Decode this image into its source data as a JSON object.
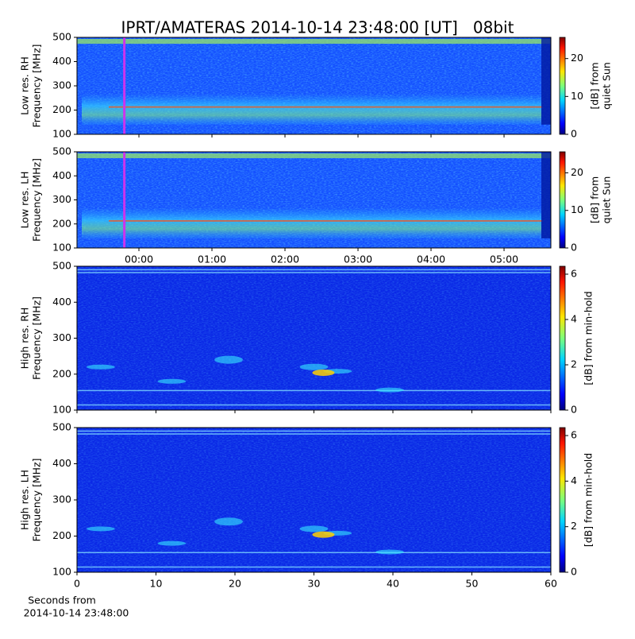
{
  "title": "IPRT/AMATERAS 2014-10-14 23:48:00 [UT]   08bit",
  "chart_data": [
    {
      "type": "heatmap",
      "ylabel": [
        "Low res. RH",
        "Frequency [MHz]"
      ],
      "xlim": [
        -0.848,
        5.641
      ],
      "xticks": [
        0,
        1,
        2,
        3,
        4,
        5
      ],
      "ylim": [
        100,
        500
      ],
      "yticks": [
        100,
        200,
        300,
        400,
        500
      ],
      "marker_x": -0.2,
      "marker_color": "#cc33ee",
      "colorbar": {
        "label": [
          "[dB] from",
          "quiet Sun"
        ],
        "lim": [
          0,
          25.6
        ],
        "ticks": [
          0,
          10,
          20
        ]
      }
    },
    {
      "type": "heatmap",
      "ylabel": [
        "Low res. LH",
        "Frequency [MHz]"
      ],
      "xlim": [
        -0.848,
        5.641
      ],
      "xticks": [
        {
          "value": 0,
          "label": "00:00"
        },
        {
          "value": 1,
          "label": "01:00"
        },
        {
          "value": 2,
          "label": "02:00"
        },
        {
          "value": 3,
          "label": "03:00"
        },
        {
          "value": 4,
          "label": "04:00"
        },
        {
          "value": 5,
          "label": "05:00"
        }
      ],
      "ylim": [
        100,
        500
      ],
      "yticks": [
        100,
        200,
        300,
        400,
        500
      ],
      "marker_x": -0.2,
      "marker_color": "#cc33ee",
      "colorbar": {
        "label": [
          "[dB] from",
          "quiet Sun"
        ],
        "lim": [
          0,
          25.6
        ],
        "ticks": [
          0,
          10,
          20
        ]
      }
    },
    {
      "type": "heatmap",
      "ylabel": [
        "High res. RH",
        "Frequency [MHz]"
      ],
      "xlim": [
        0,
        60
      ],
      "xticks": [
        0,
        10,
        20,
        30,
        40,
        50,
        60
      ],
      "ylim": [
        100,
        500
      ],
      "yticks": [
        100,
        200,
        300,
        400,
        500
      ],
      "colorbar": {
        "label": [
          "[dB] from min-hold"
        ],
        "lim": [
          0,
          6.35
        ],
        "ticks": [
          0,
          2,
          4,
          6
        ]
      }
    },
    {
      "type": "heatmap",
      "ylabel": [
        "High res. LH",
        "Frequency [MHz]"
      ],
      "xlim": [
        0,
        60
      ],
      "xticks": [
        0,
        10,
        20,
        30,
        40,
        50,
        60
      ],
      "xlabel": [
        "Seconds from",
        "2014-10-14 23:48:00"
      ],
      "ylim": [
        100,
        500
      ],
      "yticks": [
        100,
        200,
        300,
        400,
        500
      ],
      "colorbar": {
        "label": [
          "[dB] from min-hold"
        ],
        "lim": [
          0,
          6.35
        ],
        "ticks": [
          0,
          2,
          4,
          6
        ]
      }
    }
  ]
}
